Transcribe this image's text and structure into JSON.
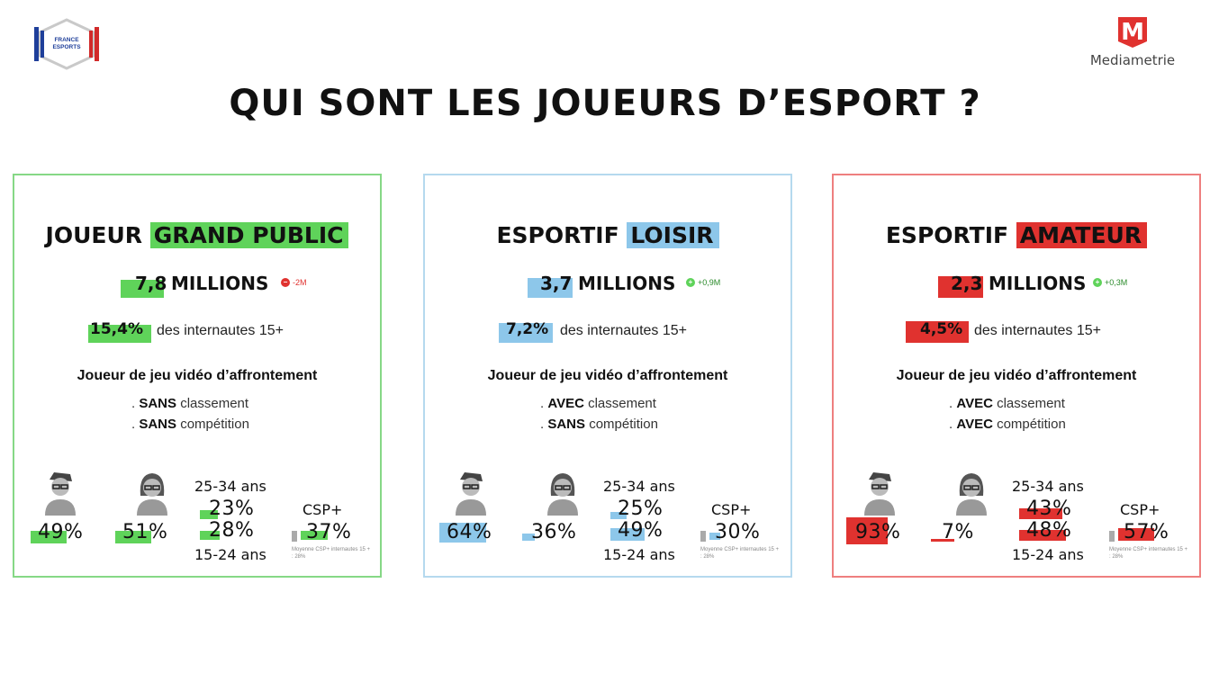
{
  "title": "QUI SONT LES JOUEURS D’ESPORT ?",
  "logos": {
    "france_esports_lines": [
      "FRANCE",
      "ESPORTS"
    ],
    "mediametrie_name": "Mediametrie",
    "mediametrie_letter": "M"
  },
  "colors": {
    "green": "#5fd35a",
    "blue": "#8dc7ea",
    "red": "#e0322f",
    "gray": "#aaaaaa"
  },
  "cards": [
    {
      "title_prefix": "JOUEUR",
      "title_highlight": "GRAND PUBLIC",
      "count_value": "7,8",
      "count_unit": "MILLIONS",
      "delta": "-2M",
      "delta_icon": "minus-circle-icon",
      "share_value": "15,4%",
      "share_suffix": "des internautes 15+",
      "description": "Joueur de jeu vidéo d’affrontement",
      "criteria": [
        {
          "bullet": ".",
          "keyword": "SANS",
          "label": "classement"
        },
        {
          "bullet": ".",
          "keyword": "SANS",
          "label": "compétition"
        }
      ],
      "male_pct": "49%",
      "female_pct": "51%",
      "age_top_label": "25-34 ans",
      "age_top_pct": "23%",
      "age_bottom_pct": "28%",
      "age_bottom_label": "15-24 ans",
      "csp_label": "CSP+",
      "csp_pct": "37%",
      "csp_avg_note": "Moyenne CSP+ internautes 15 + : 28%"
    },
    {
      "title_prefix": "ESPORTIF",
      "title_highlight": "LOISIR",
      "count_value": "3,7",
      "count_unit": "MILLIONS",
      "delta": "+0,9M",
      "delta_icon": "plus-circle-icon",
      "share_value": "7,2%",
      "share_suffix": "des internautes 15+",
      "description": "Joueur de jeu vidéo d’affrontement",
      "criteria": [
        {
          "bullet": ".",
          "keyword": "AVEC",
          "label": "classement"
        },
        {
          "bullet": ".",
          "keyword": "SANS",
          "label": "compétition"
        }
      ],
      "male_pct": "64%",
      "female_pct": "36%",
      "age_top_label": "25-34 ans",
      "age_top_pct": "25%",
      "age_bottom_pct": "49%",
      "age_bottom_label": "15-24 ans",
      "csp_label": "CSP+",
      "csp_pct": "30%",
      "csp_avg_note": "Moyenne CSP+ internautes 15 + : 28%"
    },
    {
      "title_prefix": "ESPORTIF",
      "title_highlight": "AMATEUR",
      "count_value": "2,3",
      "count_unit": "MILLIONS",
      "delta": "+0,3M",
      "delta_icon": "plus-circle-icon",
      "share_value": "4,5%",
      "share_suffix": "des internautes 15+",
      "description": "Joueur de jeu vidéo d’affrontement",
      "criteria": [
        {
          "bullet": ".",
          "keyword": "AVEC",
          "label": "classement"
        },
        {
          "bullet": ".",
          "keyword": "AVEC",
          "label": "compétition"
        }
      ],
      "male_pct": "93%",
      "female_pct": "7%",
      "age_top_label": "25-34 ans",
      "age_top_pct": "43%",
      "age_bottom_pct": "48%",
      "age_bottom_label": "15-24 ans",
      "csp_label": "CSP+",
      "csp_pct": "57%",
      "csp_avg_note": "Moyenne CSP+ internautes 15 + : 28%"
    }
  ]
}
